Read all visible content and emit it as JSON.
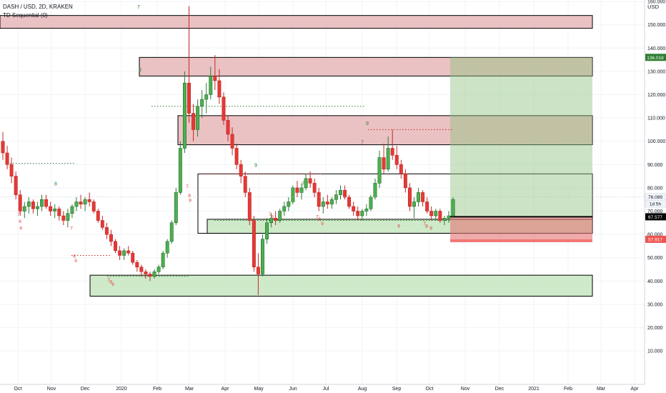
{
  "header": {
    "symbol_line": "DASH / USD, 2D, KRAKEN",
    "indicator_line": "TD Sequential (0)",
    "currency": "USD"
  },
  "chart_data": {
    "type": "candlestick",
    "symbol": "DASH / USD",
    "interval": "2D",
    "exchange": "KRAKEN",
    "y_axis": {
      "ticks": [
        10,
        20,
        30,
        40,
        50,
        60,
        70,
        80,
        90,
        100,
        110,
        120,
        130,
        140,
        150,
        160
      ],
      "tick_labels": [
        "10.000",
        "20.000",
        "30.000",
        "40.000",
        "50.000",
        "60.000",
        "70.000",
        "80.000",
        "90.000",
        "100.000",
        "110.000",
        "120.000",
        "130.000",
        "140.000",
        "150.000",
        "160.000"
      ],
      "range": [
        7,
        164
      ]
    },
    "x_axis": {
      "tick_labels": [
        "Oct",
        "Nov",
        "Dec",
        "2020",
        "Feb",
        "Mar",
        "Apr",
        "May",
        "Jun",
        "Jul",
        "Aug",
        "Sep",
        "Oct",
        "Nov",
        "Dec",
        "2021",
        "Feb",
        "Mar",
        "Apr"
      ]
    },
    "price_labels": [
      {
        "text": "136.018",
        "value": 136.018,
        "color": "#2e7d32"
      },
      {
        "text": "76.089",
        "value": 76.089,
        "color": "#f0f3fa"
      },
      {
        "text": "1d 5h",
        "value": 73.2,
        "color": "#f0f3fa"
      },
      {
        "text": "67.577",
        "value": 67.577,
        "color": "#000000"
      },
      {
        "text": "57.917",
        "value": 57.917,
        "color": "#ef5350"
      }
    ],
    "last_price": 76.089,
    "position": {
      "entry": 67.577,
      "stop": 57.917,
      "target": 136.018
    },
    "zones": [
      {
        "kind": "resistance",
        "low": 148.5,
        "high": 154.0
      },
      {
        "kind": "resistance",
        "low": 128.0,
        "high": 136.0
      },
      {
        "kind": "resistance",
        "low": 98.5,
        "high": 111.0
      },
      {
        "kind": "range",
        "low": 60.5,
        "high": 86.0
      },
      {
        "kind": "support",
        "low": 60.5,
        "high": 66.5
      },
      {
        "kind": "support",
        "low": 33.5,
        "high": 42.5
      }
    ],
    "td_labels": {
      "buy": [
        "7",
        "8",
        "9",
        "7",
        "8",
        "9",
        "7",
        "8",
        "9",
        "7",
        "8",
        "9",
        "7",
        "8",
        "9",
        "7",
        "8",
        "9",
        "7",
        "8",
        "9"
      ],
      "sell": [
        "7",
        "8",
        "9",
        "7",
        "7",
        "9",
        "8"
      ]
    },
    "candles": [
      {
        "o": 100,
        "h": 104,
        "l": 92,
        "c": 95
      },
      {
        "o": 95,
        "h": 98,
        "l": 88,
        "c": 90
      },
      {
        "o": 90,
        "h": 93,
        "l": 82,
        "c": 85
      },
      {
        "o": 85,
        "h": 87,
        "l": 75,
        "c": 77
      },
      {
        "o": 77,
        "h": 79,
        "l": 68,
        "c": 70
      },
      {
        "o": 70,
        "h": 74,
        "l": 67,
        "c": 72
      },
      {
        "o": 72,
        "h": 76,
        "l": 69,
        "c": 74
      },
      {
        "o": 74,
        "h": 75,
        "l": 69,
        "c": 71
      },
      {
        "o": 71,
        "h": 74,
        "l": 68,
        "c": 72
      },
      {
        "o": 72,
        "h": 77,
        "l": 70,
        "c": 75
      },
      {
        "o": 75,
        "h": 77,
        "l": 71,
        "c": 72
      },
      {
        "o": 72,
        "h": 74,
        "l": 68,
        "c": 70
      },
      {
        "o": 70,
        "h": 73,
        "l": 67,
        "c": 71
      },
      {
        "o": 71,
        "h": 72,
        "l": 66,
        "c": 68
      },
      {
        "o": 68,
        "h": 70,
        "l": 64,
        "c": 66
      },
      {
        "o": 66,
        "h": 71,
        "l": 63,
        "c": 69
      },
      {
        "o": 69,
        "h": 73,
        "l": 67,
        "c": 72
      },
      {
        "o": 72,
        "h": 76,
        "l": 70,
        "c": 74
      },
      {
        "o": 74,
        "h": 77,
        "l": 71,
        "c": 73
      },
      {
        "o": 73,
        "h": 76,
        "l": 70,
        "c": 75
      },
      {
        "o": 75,
        "h": 78,
        "l": 72,
        "c": 74
      },
      {
        "o": 74,
        "h": 75,
        "l": 69,
        "c": 70
      },
      {
        "o": 70,
        "h": 71,
        "l": 65,
        "c": 66
      },
      {
        "o": 66,
        "h": 68,
        "l": 62,
        "c": 63
      },
      {
        "o": 63,
        "h": 65,
        "l": 58,
        "c": 60
      },
      {
        "o": 60,
        "h": 62,
        "l": 55,
        "c": 57
      },
      {
        "o": 57,
        "h": 58,
        "l": 52,
        "c": 53
      },
      {
        "o": 53,
        "h": 55,
        "l": 49,
        "c": 51
      },
      {
        "o": 51,
        "h": 54,
        "l": 49,
        "c": 53
      },
      {
        "o": 53,
        "h": 55,
        "l": 51,
        "c": 52
      },
      {
        "o": 52,
        "h": 53,
        "l": 47,
        "c": 48
      },
      {
        "o": 48,
        "h": 49,
        "l": 44,
        "c": 46
      },
      {
        "o": 46,
        "h": 47,
        "l": 42,
        "c": 44
      },
      {
        "o": 44,
        "h": 45,
        "l": 41,
        "c": 43
      },
      {
        "o": 43,
        "h": 44,
        "l": 40,
        "c": 42
      },
      {
        "o": 42,
        "h": 45,
        "l": 41,
        "c": 44
      },
      {
        "o": 44,
        "h": 47,
        "l": 43,
        "c": 46
      },
      {
        "o": 46,
        "h": 53,
        "l": 45,
        "c": 52
      },
      {
        "o": 52,
        "h": 58,
        "l": 50,
        "c": 57
      },
      {
        "o": 57,
        "h": 66,
        "l": 56,
        "c": 65
      },
      {
        "o": 65,
        "h": 80,
        "l": 64,
        "c": 78
      },
      {
        "o": 78,
        "h": 100,
        "l": 77,
        "c": 97
      },
      {
        "o": 97,
        "h": 130,
        "l": 95,
        "c": 125
      },
      {
        "o": 125,
        "h": 158,
        "l": 108,
        "c": 112
      },
      {
        "o": 112,
        "h": 116,
        "l": 100,
        "c": 105
      },
      {
        "o": 105,
        "h": 118,
        "l": 102,
        "c": 115
      },
      {
        "o": 115,
        "h": 122,
        "l": 110,
        "c": 118
      },
      {
        "o": 118,
        "h": 125,
        "l": 112,
        "c": 120
      },
      {
        "o": 120,
        "h": 132,
        "l": 118,
        "c": 128
      },
      {
        "o": 128,
        "h": 137,
        "l": 122,
        "c": 126
      },
      {
        "o": 126,
        "h": 131,
        "l": 116,
        "c": 119
      },
      {
        "o": 119,
        "h": 121,
        "l": 107,
        "c": 109
      },
      {
        "o": 109,
        "h": 111,
        "l": 100,
        "c": 103
      },
      {
        "o": 103,
        "h": 106,
        "l": 94,
        "c": 97
      },
      {
        "o": 97,
        "h": 99,
        "l": 88,
        "c": 90
      },
      {
        "o": 90,
        "h": 92,
        "l": 82,
        "c": 85
      },
      {
        "o": 85,
        "h": 87,
        "l": 76,
        "c": 78
      },
      {
        "o": 78,
        "h": 80,
        "l": 64,
        "c": 66
      },
      {
        "o": 66,
        "h": 68,
        "l": 44,
        "c": 46
      },
      {
        "o": 46,
        "h": 52,
        "l": 34,
        "c": 43
      },
      {
        "o": 43,
        "h": 60,
        "l": 42,
        "c": 58
      },
      {
        "o": 58,
        "h": 67,
        "l": 56,
        "c": 65
      },
      {
        "o": 65,
        "h": 69,
        "l": 63,
        "c": 67
      },
      {
        "o": 67,
        "h": 70,
        "l": 64,
        "c": 66
      },
      {
        "o": 66,
        "h": 71,
        "l": 65,
        "c": 70
      },
      {
        "o": 70,
        "h": 74,
        "l": 68,
        "c": 72
      },
      {
        "o": 72,
        "h": 76,
        "l": 70,
        "c": 74
      },
      {
        "o": 74,
        "h": 81,
        "l": 73,
        "c": 80
      },
      {
        "o": 80,
        "h": 83,
        "l": 76,
        "c": 78
      },
      {
        "o": 78,
        "h": 82,
        "l": 75,
        "c": 80
      },
      {
        "o": 80,
        "h": 86,
        "l": 79,
        "c": 84
      },
      {
        "o": 84,
        "h": 87,
        "l": 80,
        "c": 82
      },
      {
        "o": 82,
        "h": 84,
        "l": 76,
        "c": 78
      },
      {
        "o": 78,
        "h": 80,
        "l": 70,
        "c": 72
      },
      {
        "o": 72,
        "h": 76,
        "l": 69,
        "c": 74
      },
      {
        "o": 74,
        "h": 77,
        "l": 71,
        "c": 73
      },
      {
        "o": 73,
        "h": 76,
        "l": 71,
        "c": 75
      },
      {
        "o": 75,
        "h": 79,
        "l": 73,
        "c": 77
      },
      {
        "o": 77,
        "h": 81,
        "l": 75,
        "c": 79
      },
      {
        "o": 79,
        "h": 81,
        "l": 75,
        "c": 76
      },
      {
        "o": 76,
        "h": 77,
        "l": 71,
        "c": 72
      },
      {
        "o": 72,
        "h": 74,
        "l": 68,
        "c": 70
      },
      {
        "o": 70,
        "h": 72,
        "l": 66,
        "c": 68
      },
      {
        "o": 68,
        "h": 71,
        "l": 66,
        "c": 70
      },
      {
        "o": 70,
        "h": 73,
        "l": 68,
        "c": 71
      },
      {
        "o": 71,
        "h": 77,
        "l": 70,
        "c": 76
      },
      {
        "o": 76,
        "h": 84,
        "l": 75,
        "c": 82
      },
      {
        "o": 82,
        "h": 96,
        "l": 80,
        "c": 93
      },
      {
        "o": 93,
        "h": 99,
        "l": 86,
        "c": 88
      },
      {
        "o": 88,
        "h": 102,
        "l": 87,
        "c": 97
      },
      {
        "o": 97,
        "h": 105,
        "l": 92,
        "c": 94
      },
      {
        "o": 94,
        "h": 98,
        "l": 88,
        "c": 90
      },
      {
        "o": 90,
        "h": 92,
        "l": 84,
        "c": 86
      },
      {
        "o": 86,
        "h": 88,
        "l": 78,
        "c": 80
      },
      {
        "o": 80,
        "h": 82,
        "l": 70,
        "c": 72
      },
      {
        "o": 72,
        "h": 76,
        "l": 67,
        "c": 74
      },
      {
        "o": 74,
        "h": 80,
        "l": 72,
        "c": 78
      },
      {
        "o": 78,
        "h": 79,
        "l": 72,
        "c": 74
      },
      {
        "o": 74,
        "h": 76,
        "l": 69,
        "c": 70
      },
      {
        "o": 70,
        "h": 72,
        "l": 66,
        "c": 68
      },
      {
        "o": 68,
        "h": 71,
        "l": 66,
        "c": 70
      },
      {
        "o": 70,
        "h": 71,
        "l": 65,
        "c": 66
      },
      {
        "o": 66,
        "h": 68,
        "l": 64,
        "c": 67
      },
      {
        "o": 67,
        "h": 70,
        "l": 65,
        "c": 68
      },
      {
        "o": 68,
        "h": 76,
        "l": 67,
        "c": 75
      }
    ]
  }
}
